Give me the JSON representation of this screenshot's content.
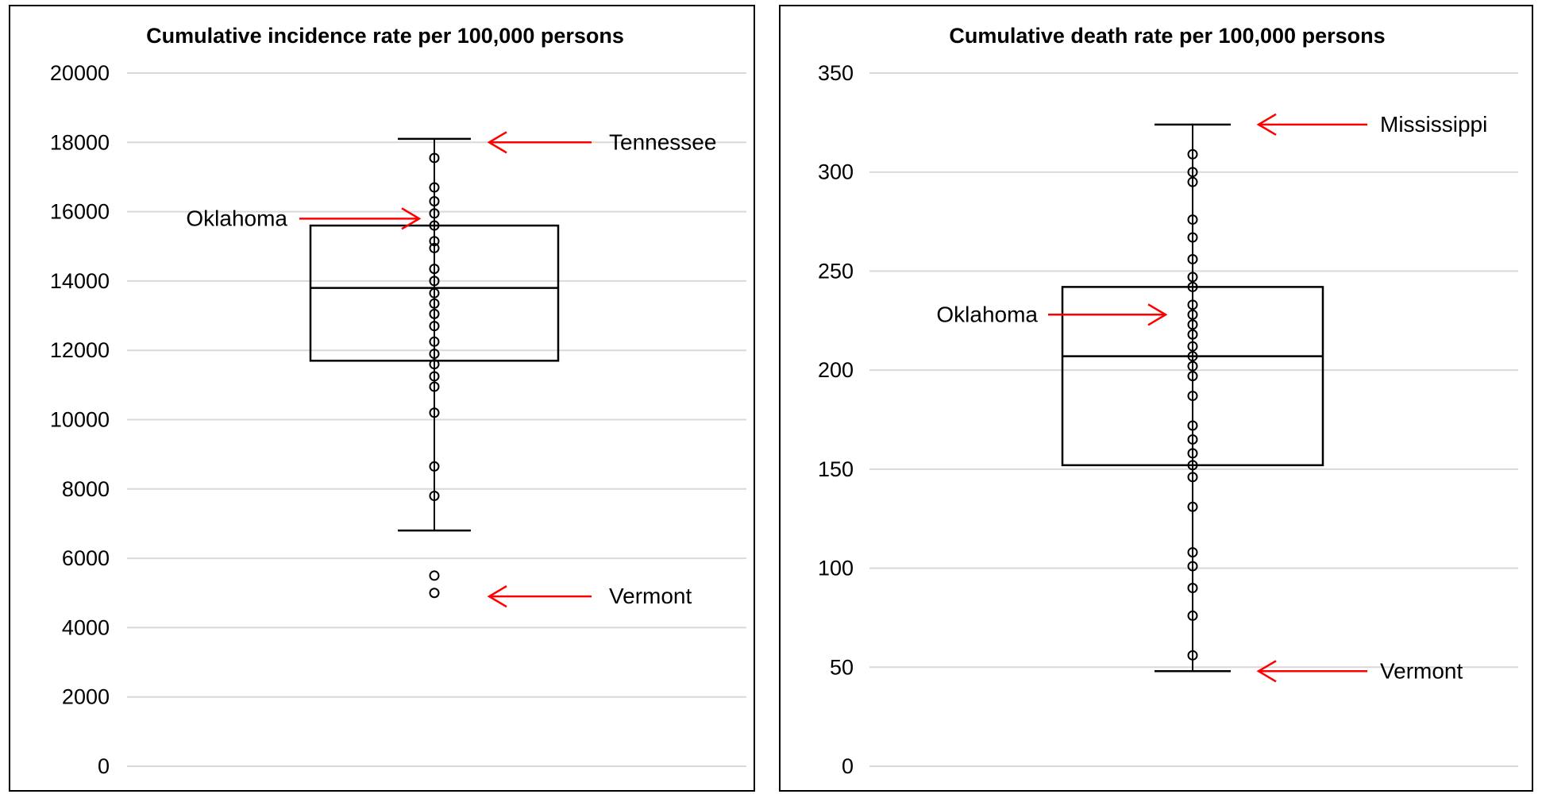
{
  "chart_data": [
    {
      "type": "box",
      "title": "Cumulative incidence rate per 100,000 persons",
      "xlabel": "",
      "ylabel": "",
      "ylim": [
        0,
        20000
      ],
      "yticks": [
        0,
        2000,
        4000,
        6000,
        8000,
        10000,
        12000,
        14000,
        16000,
        18000,
        20000
      ],
      "ytick_labels": [
        "0",
        "2000",
        "4000",
        "6000",
        "8000",
        "10000",
        "12000",
        "14000",
        "16000",
        "18000",
        "20000"
      ],
      "grid": true,
      "box": {
        "whisker_low": 6800,
        "q1": 11700,
        "median": 13800,
        "q3": 15600,
        "whisker_high": 18100
      },
      "points": [
        5000,
        5500,
        7800,
        8650,
        10200,
        10950,
        11250,
        11600,
        11900,
        12250,
        12700,
        13050,
        13350,
        13650,
        14000,
        14350,
        14950,
        15150,
        15600,
        15950,
        16300,
        16700,
        17550
      ],
      "annotations": [
        {
          "text": "Tennessee",
          "value": 18000,
          "side": "right"
        },
        {
          "text": "Oklahoma",
          "value": 15800,
          "side": "left"
        },
        {
          "text": "Vermont",
          "value": 4900,
          "side": "right"
        }
      ],
      "annotation_color": "#ff0000"
    },
    {
      "type": "box",
      "title": "Cumulative death rate per 100,000 persons",
      "xlabel": "",
      "ylabel": "",
      "ylim": [
        0,
        350
      ],
      "yticks": [
        0,
        50,
        100,
        150,
        200,
        250,
        300,
        350
      ],
      "ytick_labels": [
        "0",
        "50",
        "100",
        "150",
        "200",
        "250",
        "300",
        "350"
      ],
      "grid": true,
      "box": {
        "whisker_low": 48,
        "q1": 152,
        "median": 207,
        "q3": 242,
        "whisker_high": 324
      },
      "points": [
        56,
        76,
        90,
        101,
        108,
        131,
        146,
        152,
        158,
        165,
        172,
        187,
        197,
        202,
        207,
        212,
        218,
        223,
        228,
        233,
        242,
        247,
        256,
        267,
        276,
        295,
        300,
        309
      ],
      "annotations": [
        {
          "text": "Mississippi",
          "value": 324,
          "side": "right"
        },
        {
          "text": "Oklahoma",
          "value": 228,
          "side": "left"
        },
        {
          "text": "Vermont",
          "value": 48,
          "side": "right"
        }
      ],
      "annotation_color": "#ff0000"
    }
  ]
}
